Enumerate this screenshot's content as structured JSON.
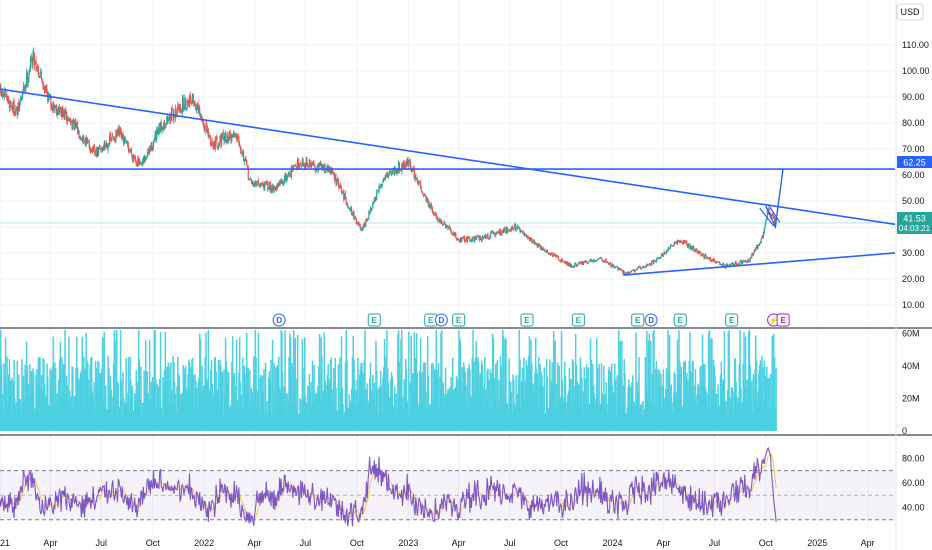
{
  "currency": "USD",
  "colors": {
    "up": "#26a69a",
    "down": "#ef5350",
    "trendline": "#2962ff",
    "volume": "#4dd0e1",
    "rsi_line": "#7e57c2",
    "rsi_ma": "#f9c74f",
    "rsi_band": "#7e57c2",
    "grid": "#f0f3fa",
    "earnings_badge": "#26a69a",
    "dividend_badge": "#2962ff",
    "split_badge": "#9c27b0"
  },
  "price_labels": {
    "level": "62.25",
    "last": "41.53",
    "countdown": "04:03:21"
  },
  "chart_data": [
    {
      "type": "candlestick",
      "panel": "price",
      "yaxis_ticks": [
        "110.00",
        "100.00",
        "90.00",
        "80.00",
        "70.00",
        "60.00",
        "50.00",
        "40.00",
        "30.00",
        "20.00",
        "10.00"
      ],
      "ylim": [
        5,
        118
      ],
      "xaxis_ticks": [
        "2021",
        "Apr",
        "Jul",
        "Oct",
        "2022",
        "Apr",
        "Jul",
        "Oct",
        "2023",
        "Apr",
        "Jul",
        "Oct",
        "2024",
        "Apr",
        "Jul",
        "Oct",
        "2025",
        "Apr"
      ],
      "xlim": [
        "2021-01-01",
        "2025-05-20"
      ],
      "series_anchors": [
        {
          "date": "2021-01-01",
          "price": 92
        },
        {
          "date": "2021-02-01",
          "price": 84
        },
        {
          "date": "2021-03-01",
          "price": 106
        },
        {
          "date": "2021-04-01",
          "price": 88
        },
        {
          "date": "2021-05-10",
          "price": 80
        },
        {
          "date": "2021-06-20",
          "price": 68
        },
        {
          "date": "2021-08-01",
          "price": 76
        },
        {
          "date": "2021-09-10",
          "price": 63
        },
        {
          "date": "2021-10-20",
          "price": 80
        },
        {
          "date": "2021-12-10",
          "price": 90
        },
        {
          "date": "2022-01-15",
          "price": 72
        },
        {
          "date": "2022-03-01",
          "price": 76
        },
        {
          "date": "2022-03-25",
          "price": 57
        },
        {
          "date": "2022-05-10",
          "price": 55
        },
        {
          "date": "2022-06-20",
          "price": 65
        },
        {
          "date": "2022-08-15",
          "price": 62
        },
        {
          "date": "2022-10-10",
          "price": 38
        },
        {
          "date": "2022-11-20",
          "price": 60
        },
        {
          "date": "2023-01-01",
          "price": 65
        },
        {
          "date": "2023-02-15",
          "price": 45
        },
        {
          "date": "2023-04-01",
          "price": 35
        },
        {
          "date": "2023-05-15",
          "price": 36
        },
        {
          "date": "2023-07-10",
          "price": 40
        },
        {
          "date": "2023-09-01",
          "price": 31
        },
        {
          "date": "2023-10-20",
          "price": 25
        },
        {
          "date": "2023-12-10",
          "price": 28
        },
        {
          "date": "2024-01-25",
          "price": 22
        },
        {
          "date": "2024-03-10",
          "price": 26
        },
        {
          "date": "2024-05-01",
          "price": 35
        },
        {
          "date": "2024-06-10",
          "price": 29
        },
        {
          "date": "2024-07-20",
          "price": 25
        },
        {
          "date": "2024-09-01",
          "price": 27
        },
        {
          "date": "2024-09-25",
          "price": 36
        },
        {
          "date": "2024-10-05",
          "price": 46
        },
        {
          "date": "2024-10-20",
          "price": 41.53
        }
      ],
      "horizontal_line": {
        "price": 62.25
      },
      "trendlines": [
        {
          "from": {
            "date": "2021-01-01",
            "price": 93
          },
          "to": {
            "date": "2025-05-20",
            "price": 41
          }
        },
        {
          "from": {
            "date": "2024-01-20",
            "price": 21.5
          },
          "to": {
            "date": "2025-05-20",
            "price": 30
          }
        }
      ],
      "projection": [
        {
          "date": "2024-10-01",
          "price": 48
        },
        {
          "date": "2024-10-18",
          "price": 40
        },
        {
          "date": "2024-11-01",
          "price": 62.5
        }
      ],
      "event_badges": [
        {
          "date": "2022-05-15",
          "type": "dividend",
          "label": "D"
        },
        {
          "date": "2022-11-01",
          "type": "earnings",
          "label": "E"
        },
        {
          "date": "2023-02-10",
          "type": "earnings",
          "label": "E"
        },
        {
          "date": "2023-03-01",
          "type": "dividend",
          "label": "D"
        },
        {
          "date": "2023-04-01",
          "type": "earnings",
          "label": "E"
        },
        {
          "date": "2023-08-01",
          "type": "earnings",
          "label": "E"
        },
        {
          "date": "2023-11-01",
          "type": "earnings",
          "label": "E"
        },
        {
          "date": "2024-02-15",
          "type": "earnings",
          "label": "E"
        },
        {
          "date": "2024-03-10",
          "type": "dividend",
          "label": "D"
        },
        {
          "date": "2024-05-01",
          "type": "earnings",
          "label": "E"
        },
        {
          "date": "2024-08-01",
          "type": "earnings",
          "label": "E"
        },
        {
          "date": "2024-10-15",
          "type": "split",
          "label": "⚡"
        },
        {
          "date": "2024-11-01",
          "type": "earnings_upcoming",
          "label": "E"
        }
      ]
    },
    {
      "type": "bar",
      "panel": "volume",
      "yaxis_ticks": [
        "60M",
        "40M",
        "20M",
        "0"
      ],
      "ylim": [
        0,
        62
      ],
      "unit": "M",
      "typical_range": [
        10,
        55
      ],
      "last_date": "2024-10-20"
    },
    {
      "type": "line",
      "panel": "rsi",
      "yaxis_ticks": [
        "80.00",
        "60.00",
        "40.00"
      ],
      "ylim": [
        20,
        95
      ],
      "upper_band": 70,
      "lower_band": 30,
      "middle": 50,
      "notable_peak": {
        "date": "2024-10-05",
        "value": 89
      }
    }
  ]
}
